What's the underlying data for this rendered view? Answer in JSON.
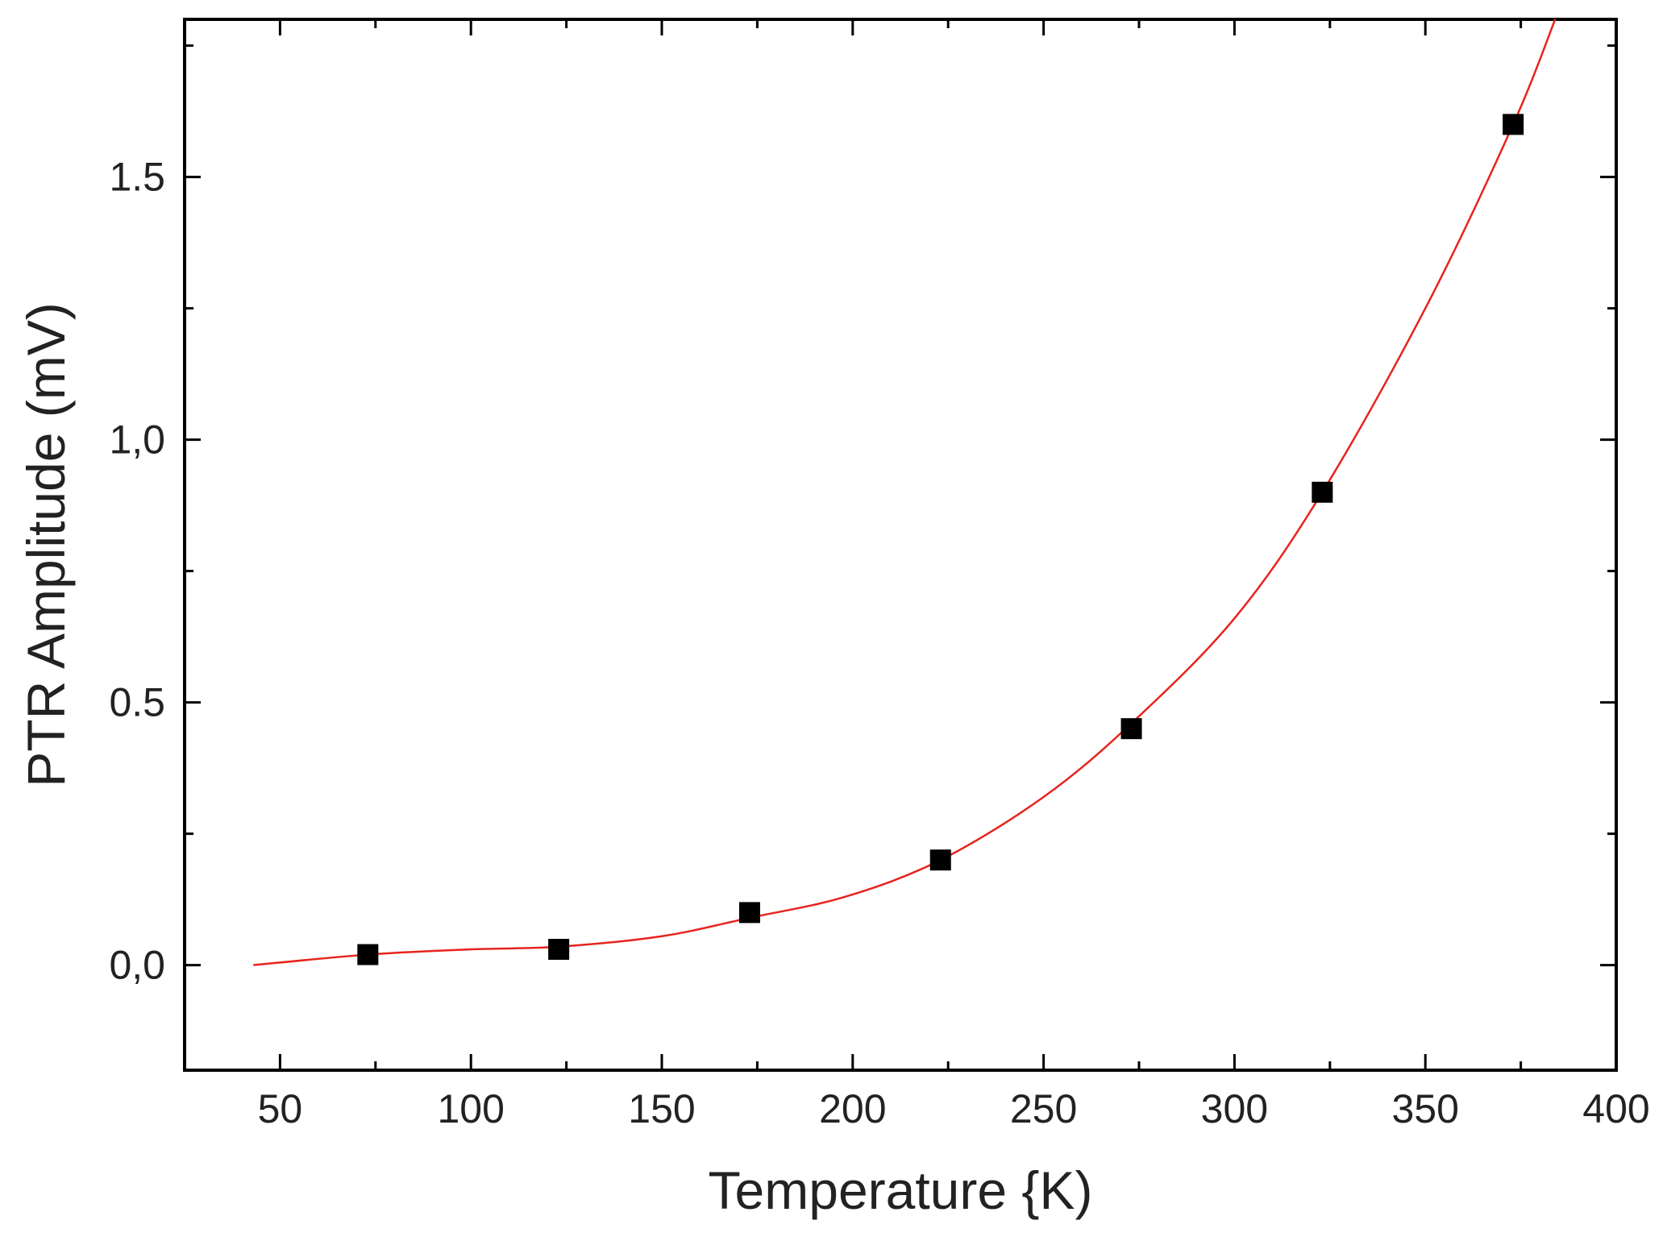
{
  "chart_data": {
    "type": "scatter",
    "title": "",
    "xlabel": "Temperature {K)",
    "ylabel": "PTR Amplitude (mV)",
    "xlim": [
      25,
      400
    ],
    "ylim": [
      -0.2,
      1.8
    ],
    "x_ticks": [
      50,
      100,
      150,
      200,
      250,
      300,
      350,
      400
    ],
    "y_ticks": [
      0.0,
      0.5,
      1.0,
      1.5
    ],
    "x_tick_labels": [
      "50",
      "100",
      "150",
      "200",
      "250",
      "300",
      "350",
      "400"
    ],
    "y_tick_labels": [
      "0,0",
      "0.5",
      "1,0",
      "1.5"
    ],
    "grid": false,
    "legend": "none",
    "series": [
      {
        "kind": "markers",
        "marker": "square",
        "color": "#000000",
        "x": [
          73,
          123,
          173,
          223,
          273,
          323,
          373
        ],
        "y": [
          0.02,
          0.03,
          0.1,
          0.2,
          0.45,
          0.9,
          1.6
        ]
      },
      {
        "kind": "fit-line",
        "color": "#e8231d",
        "x": [
          43,
          73,
          100,
          123,
          150,
          173,
          198,
          223,
          250,
          273,
          300,
          323,
          350,
          373,
          384
        ],
        "y": [
          0.0,
          0.02,
          0.03,
          0.035,
          0.055,
          0.09,
          0.13,
          0.2,
          0.32,
          0.46,
          0.66,
          0.9,
          1.25,
          1.6,
          1.8
        ]
      }
    ]
  }
}
